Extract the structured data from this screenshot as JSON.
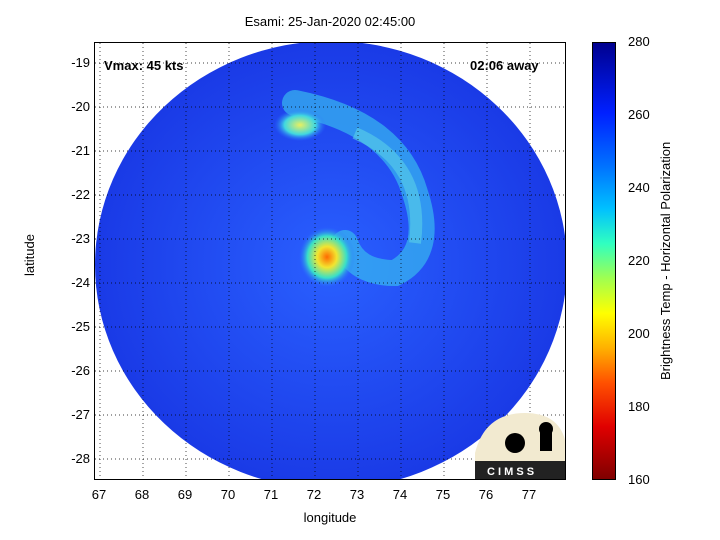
{
  "title": "Esami: 25-Jan-2020 02:45:00",
  "map": {
    "xlabel": "longitude",
    "ylabel": "latitude",
    "xlim": [
      66.9,
      77.9
    ],
    "ylim": [
      -28.5,
      -18.5
    ],
    "xticks": [
      "67",
      "68",
      "69",
      "70",
      "71",
      "72",
      "73",
      "74",
      "75",
      "76",
      "77"
    ],
    "yticks": [
      "-19",
      "-20",
      "-21",
      "-22",
      "-23",
      "-24",
      "-25",
      "-26",
      "-27",
      "-28"
    ],
    "grid": true,
    "vmax_label": "Vmax: 45 kts",
    "time_label": "02:06 away",
    "center_lonlat": [
      72.5,
      -23.5
    ],
    "colors": {
      "background": "#1a3fe0",
      "band": "#2fa8f0",
      "core": "#f0e040",
      "hot": "#ff6a00"
    }
  },
  "colorbar": {
    "label": "Brightness Temp - Horizontal Polarization",
    "ticks": [
      "280",
      "260",
      "240",
      "220",
      "200",
      "180",
      "160"
    ],
    "range": [
      160,
      280
    ]
  },
  "logo": {
    "text": "C I M S S"
  }
}
